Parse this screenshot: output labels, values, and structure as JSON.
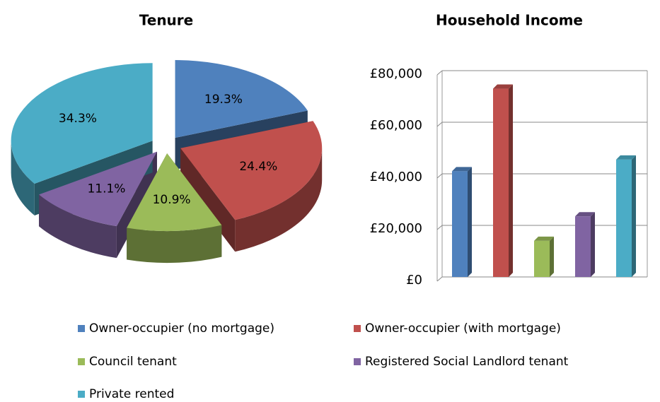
{
  "chart_data": [
    {
      "type": "pie",
      "title": "Tenure",
      "categories": [
        "Owner-occupier (no mortgage)",
        "Owner-occupier (with mortgage)",
        "Council tenant",
        "Registered Social Landlord tenant",
        "Private rented"
      ],
      "values": [
        19.3,
        24.4,
        10.9,
        11.1,
        34.3
      ],
      "value_labels": [
        "19.3%",
        "24.4%",
        "10.9%",
        "11.1%",
        "34.3%"
      ],
      "colors": [
        "#4f81bd",
        "#c0504d",
        "#9bbb59",
        "#8064a2",
        "#4bacc6"
      ]
    },
    {
      "type": "bar",
      "title": "Household Income",
      "values": [
        41000,
        73000,
        14000,
        23500,
        45500
      ],
      "colors": [
        "#4f81bd",
        "#c0504d",
        "#9bbb59",
        "#8064a2",
        "#4bacc6"
      ],
      "ylim": [
        0,
        80000
      ],
      "yticks": [
        {
          "value": 0,
          "label": "£0"
        },
        {
          "value": 20000,
          "label": "£20,000"
        },
        {
          "value": 40000,
          "label": "£40,000"
        },
        {
          "value": 60000,
          "label": "£60,000"
        },
        {
          "value": 80000,
          "label": "£80,000"
        }
      ],
      "grid": true
    }
  ]
}
